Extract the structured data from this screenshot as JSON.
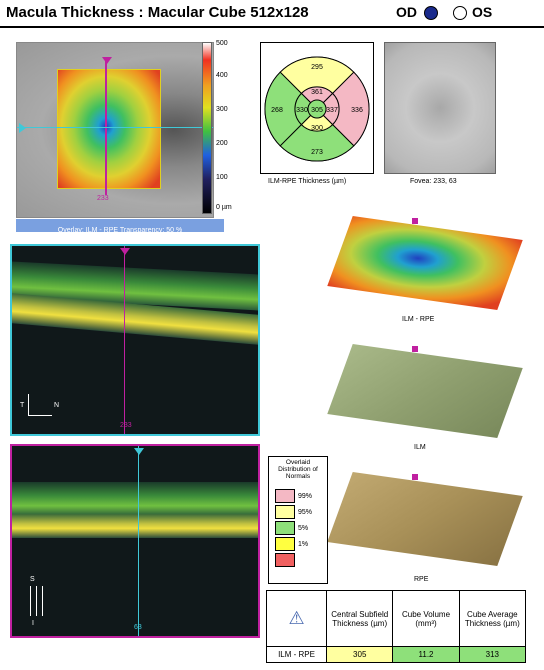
{
  "header": {
    "title": "Macula Thickness : Macular Cube 512x128",
    "od_label": "OD",
    "os_label": "OS"
  },
  "fundus_map": {
    "overlay_caption": "Overlay: ILM - RPE  Transparency: 50 %",
    "scale_ticks": [
      "500",
      "400",
      "300",
      "200",
      "100",
      "0 µm"
    ],
    "marker_value": "233"
  },
  "etdrs_grid": {
    "caption": "ILM-RPE Thickness (µm)",
    "center": "305",
    "inner_superior": "361",
    "inner_nasal": "337",
    "inner_inferior": "300",
    "inner_temporal": "330",
    "outer_superior": "295",
    "outer_nasal": "336",
    "outer_inferior": "273",
    "outer_temporal": "268"
  },
  "fovea": {
    "caption": "Fovea: 233, 63"
  },
  "bscan_top": {
    "marker": "233",
    "orient_t": "T",
    "orient_n": "N"
  },
  "bscan_bottom": {
    "marker": "63",
    "orient_s": "S",
    "orient_i": "I"
  },
  "surfaces": [
    {
      "label": "ILM - RPE"
    },
    {
      "label": "ILM"
    },
    {
      "label": "RPE"
    }
  ],
  "legend": {
    "title": "Distribution of Normals",
    "title_prefix": "Overlaid",
    "items": [
      {
        "label": "99%",
        "color": "#f4b8c4"
      },
      {
        "label": "95%",
        "color": "#ffffa0"
      },
      {
        "label": "5%",
        "color": "#8ee07a"
      },
      {
        "label": "1%",
        "color": "#ffff40"
      },
      {
        "label": "",
        "color": "#f06060"
      }
    ]
  },
  "results_table": {
    "headers": [
      "Central Subfield Thickness (µm)",
      "Cube Volume (mm³)",
      "Cube Average Thickness (µm)"
    ],
    "row_label": "ILM - RPE",
    "values": [
      "305",
      "11.2",
      "313"
    ]
  },
  "colors": {
    "accent_cyan": "#40c8d8",
    "accent_magenta": "#c020a0",
    "od_dot": "#1a2a8c"
  }
}
